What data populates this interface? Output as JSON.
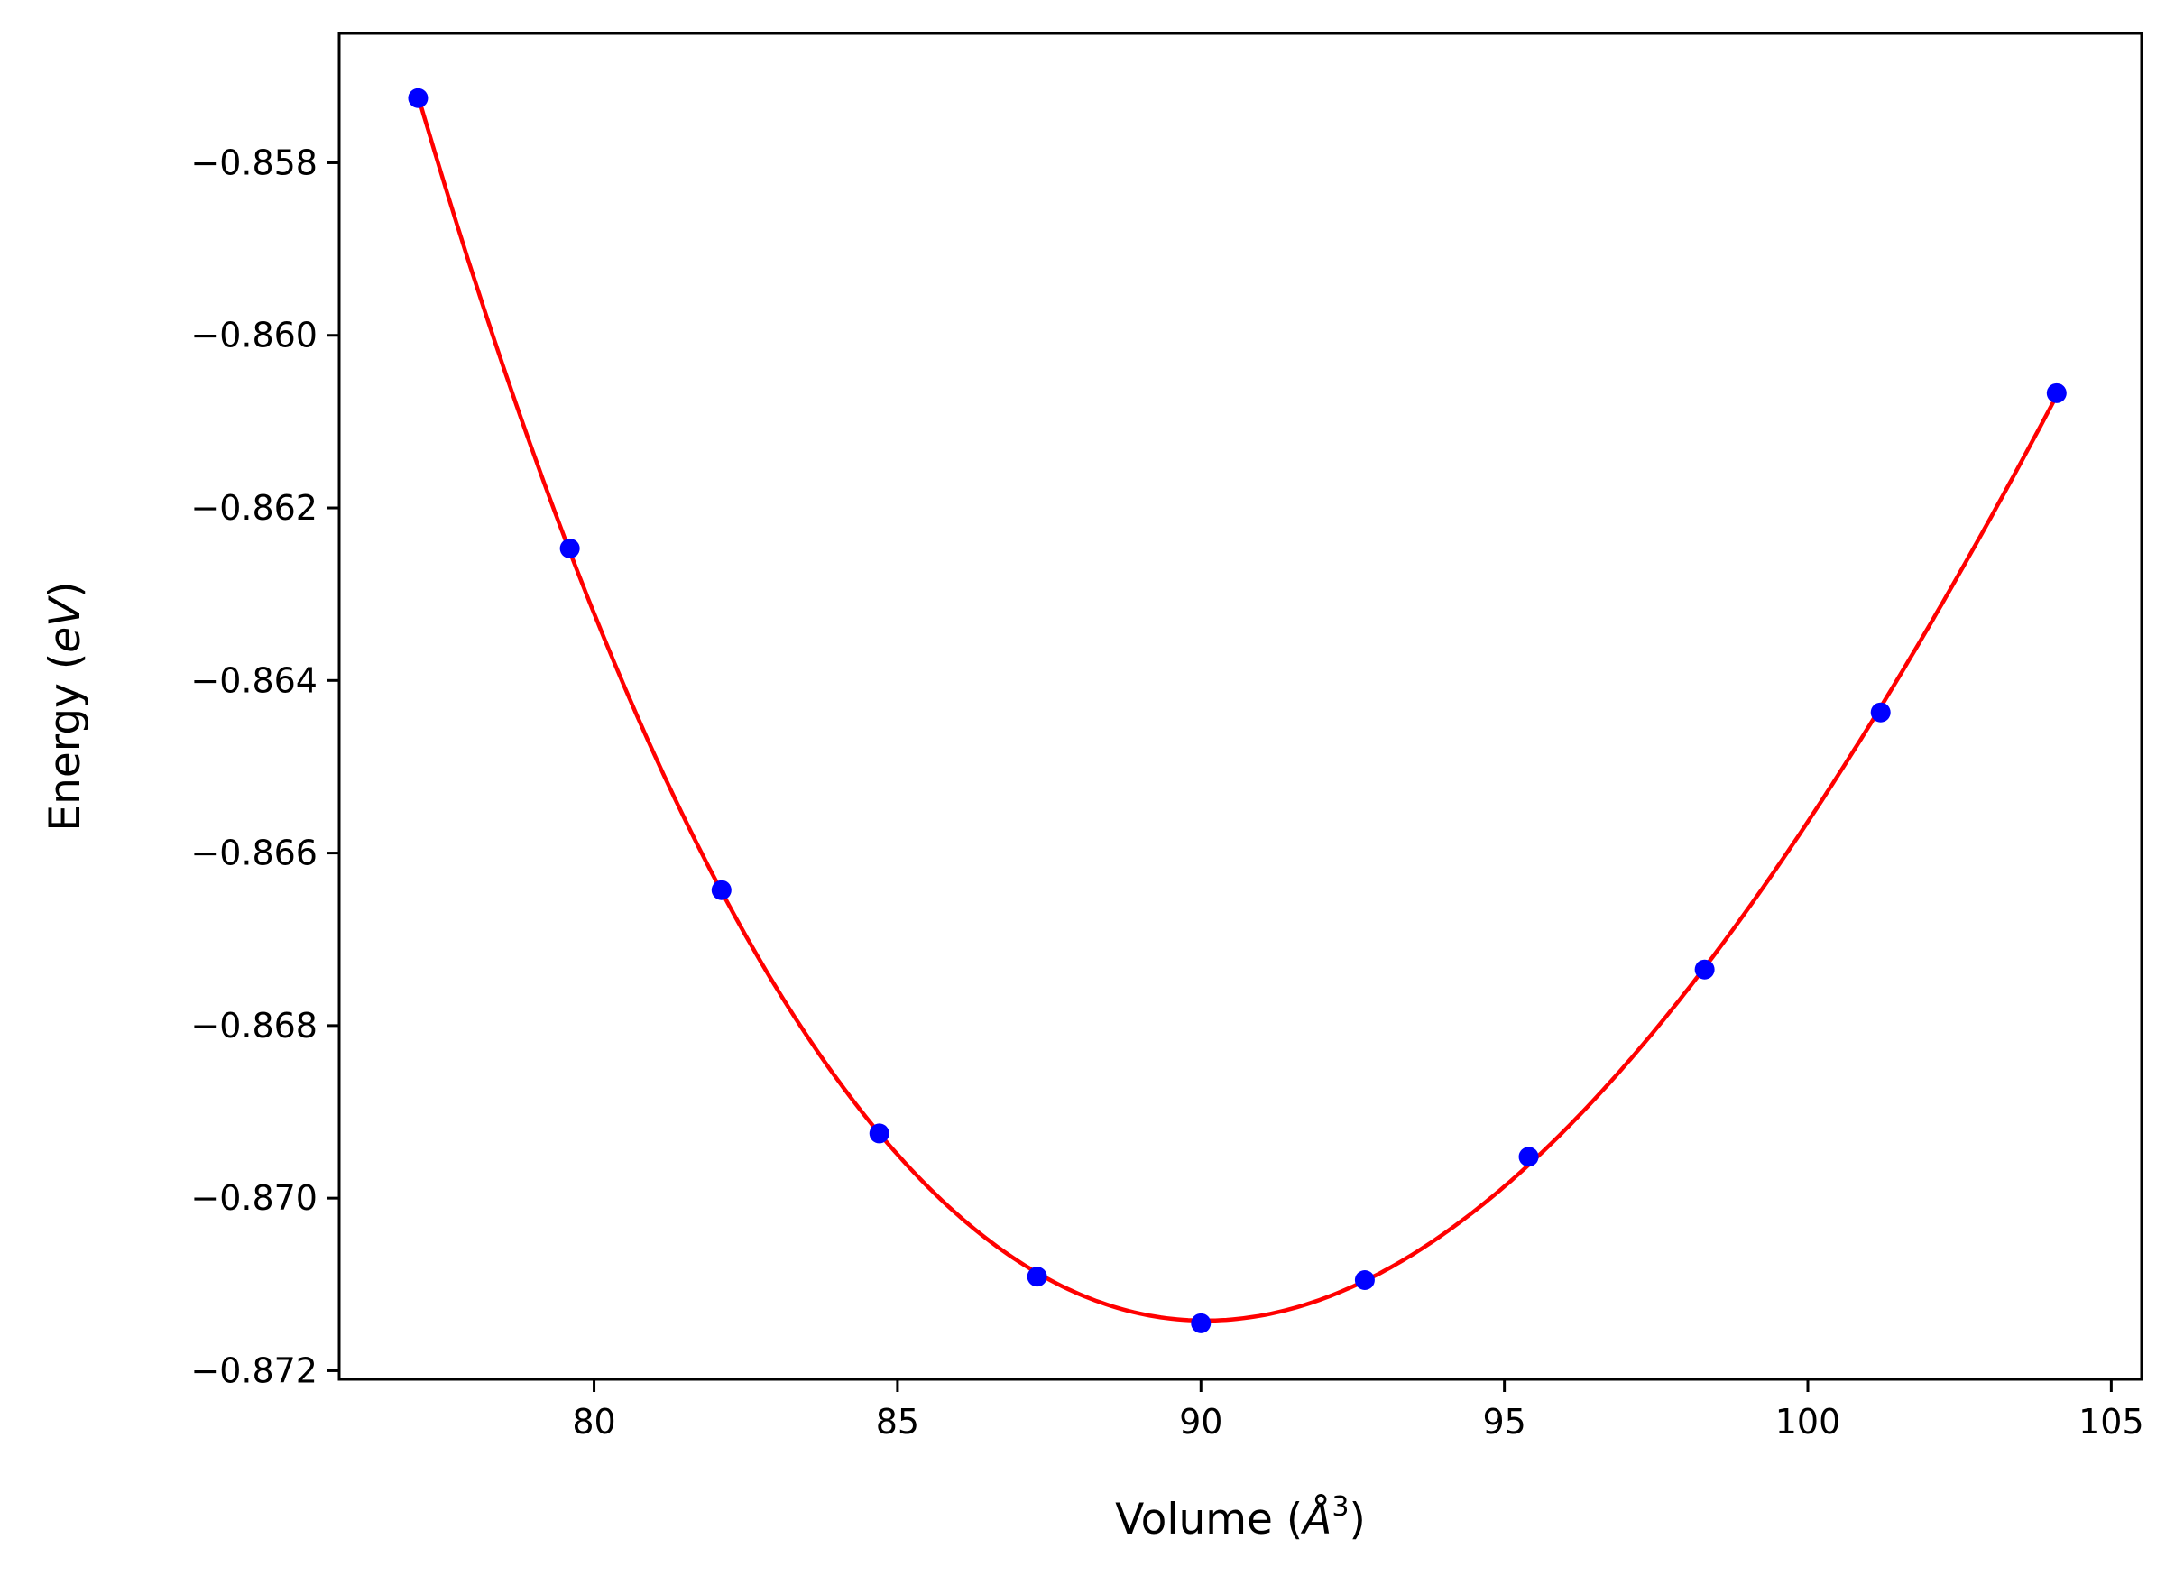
{
  "chart_data": {
    "type": "line",
    "xlabel": {
      "prefix": "Volume (",
      "symbol": "Å",
      "sup": "3",
      "suffix": ")"
    },
    "ylabel": {
      "prefix": "Energy (",
      "unit": "eV",
      "suffix": ")"
    },
    "xlim": [
      75.8,
      105.5
    ],
    "ylim": [
      -0.8721,
      -0.8565
    ],
    "xticks": [
      80,
      85,
      90,
      95,
      100,
      105
    ],
    "xtick_labels": [
      "80",
      "85",
      "90",
      "95",
      "100",
      "105"
    ],
    "yticks": [
      -0.858,
      -0.86,
      -0.862,
      -0.864,
      -0.866,
      -0.868,
      -0.87,
      -0.872
    ],
    "ytick_labels": [
      "−0.858",
      "−0.860",
      "−0.862",
      "−0.864",
      "−0.866",
      "−0.868",
      "−0.870",
      "−0.872"
    ],
    "grid": false,
    "series": [
      {
        "kind": "scatter",
        "color": "#0000ff",
        "x": [
          77.1,
          79.6,
          82.1,
          84.7,
          87.3,
          90.0,
          92.7,
          95.4,
          98.3,
          101.2,
          104.1
        ],
        "y": [
          -0.85725,
          -0.86247,
          -0.86643,
          -0.86925,
          -0.87091,
          -0.87145,
          -0.87095,
          -0.86952,
          -0.86735,
          -0.86437,
          -0.86067
        ]
      },
      {
        "kind": "fit",
        "color": "#ff0000"
      }
    ]
  }
}
